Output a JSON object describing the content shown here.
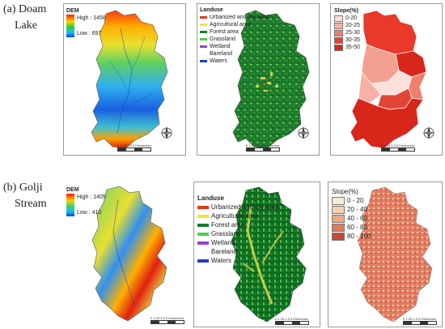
{
  "row_a": {
    "label_part1": "(a) Doam",
    "label_part2": "Lake",
    "dem": {
      "title": "DEM",
      "high": "High : 1458",
      "low": "Low : 697",
      "scale": "0 1.25 2.5      5 Kilometers"
    },
    "landuse": {
      "title": "Landuse",
      "classes": [
        {
          "label": "Urbanized and dry area",
          "color": "#e03a1a"
        },
        {
          "label": "Agricultural area",
          "color": "#f5e52a"
        },
        {
          "label": "Forest area",
          "color": "#1a7a2a"
        },
        {
          "label": "Grassland",
          "color": "#4fd04a"
        },
        {
          "label": "Wetland",
          "color": "#9b3fd0"
        },
        {
          "label": "Bareland",
          "color": "#ffffff"
        },
        {
          "label": "Waters",
          "color": "#2040c0"
        }
      ],
      "scale": "0 1.25 2.5     5 Kilometers"
    },
    "slope": {
      "title": "Slope(%)",
      "classes": [
        {
          "label": "0-20",
          "color": "#fde0dc"
        },
        {
          "label": "20-25",
          "color": "#f7b1a6"
        },
        {
          "label": "25-30",
          "color": "#ee7f6c"
        },
        {
          "label": "30-35",
          "color": "#e34534"
        },
        {
          "label": "35-50",
          "color": "#d8261a"
        }
      ],
      "scale": "0 1.25 2.5     5 Kilometers"
    }
  },
  "row_b": {
    "label_part1": "(b) Golji",
    "label_part2": "Stream",
    "dem": {
      "title": "DEM",
      "high": "High : 1405",
      "low": "Low : 410",
      "scale": "0 1.25 2.5      5 Kilometers"
    },
    "landuse": {
      "title": "Landuse",
      "classes": [
        {
          "label": "Urbanized and dry area",
          "color": "#e03a1a"
        },
        {
          "label": "Agricultural area",
          "color": "#f5e52a"
        },
        {
          "label": "Forest area",
          "color": "#1a7a2a"
        },
        {
          "label": "Grassland",
          "color": "#4fd04a"
        },
        {
          "label": "Wetland",
          "color": "#9b3fd0"
        },
        {
          "label": "Bareland",
          "color": "#ffffff"
        },
        {
          "label": "Waters",
          "color": "#2040c0"
        }
      ],
      "scale": "0 1.25 2.5     5 Kilometers"
    },
    "slope": {
      "title": "Slope(%)",
      "classes": [
        {
          "label": "0 - 20",
          "color": "#fbe9d8"
        },
        {
          "label": "20 - 40",
          "color": "#f6cfae"
        },
        {
          "label": "40 - 60",
          "color": "#ecaa84"
        },
        {
          "label": "60 - 80",
          "color": "#e07a5c"
        },
        {
          "label": "80 - 100",
          "color": "#c84a36"
        }
      ],
      "scale": "0 1.25 2.5     5 Kilometers"
    }
  }
}
